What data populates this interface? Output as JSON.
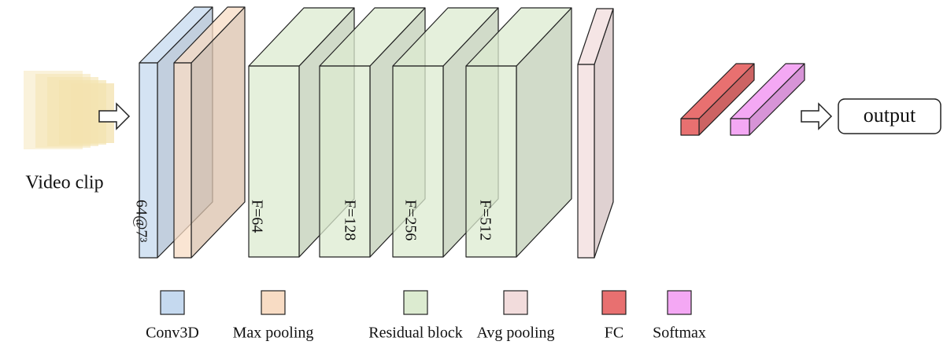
{
  "input_label": "Video clip",
  "output_label": "output",
  "layer_labels": [
    "64@7³",
    "F=64",
    "F=128",
    "F=256",
    "F=512"
  ],
  "legend": [
    "Conv3D",
    "Max pooling",
    "Residual block",
    "Avg pooling",
    "FC",
    "Softmax"
  ]
}
